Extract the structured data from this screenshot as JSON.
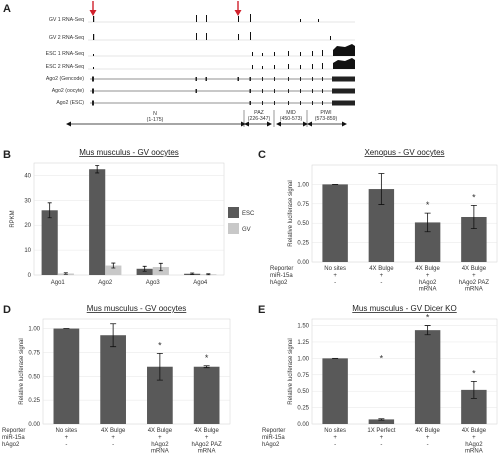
{
  "panels": {
    "A": "A",
    "B": "B",
    "C": "C",
    "D": "D",
    "E": "E"
  },
  "panel_a": {
    "tracks": [
      "GV 1 RNA-Seq",
      "GV 2 RNA-Seq",
      "ESC 1 RNA-Seq",
      "ESC 2 RNA-Seq",
      "Ago2 (Gencode)",
      "Ago2 (oocyte)",
      "Ago2 (ESC)"
    ],
    "domains": [
      {
        "name": "N",
        "range": "(1-175)"
      },
      {
        "name": "PAZ",
        "range": "(226-347)"
      },
      {
        "name": "MID",
        "range": "(450-573)"
      },
      {
        "name": "PIWI",
        "range": "(573-859)"
      }
    ],
    "marker_color": "#d0202b"
  },
  "chart_data": [
    {
      "id": "B",
      "type": "bar",
      "title": "Mus musculus - GV oocytes",
      "ylabel": "RPKM",
      "categories": [
        "Ago1",
        "Ago2",
        "Ago3",
        "Ago4"
      ],
      "series": [
        {
          "name": "ESC",
          "color": "#595959",
          "values": [
            26,
            42.5,
            2.5,
            0.5
          ],
          "err": [
            3,
            1.5,
            1,
            0.3
          ]
        },
        {
          "name": "GV",
          "color": "#c8c8c8",
          "values": [
            0.6,
            3.8,
            3.2,
            0.3
          ],
          "err": [
            0.3,
            1,
            1.5,
            0.2
          ]
        }
      ],
      "ylim": [
        0,
        45
      ],
      "yticks": [
        0,
        10,
        20,
        30,
        40
      ],
      "legend": "right"
    },
    {
      "id": "C",
      "type": "bar",
      "title": "Xenopus - GV oocytes",
      "ylabel": "Relative luciferase signal",
      "categories": [
        "No sites",
        "4X Bulge",
        "4X Bulge",
        "4X Bulge"
      ],
      "values": [
        1.0,
        0.94,
        0.51,
        0.58
      ],
      "err": [
        0.0,
        0.2,
        0.12,
        0.15
      ],
      "stars": [
        false,
        false,
        true,
        true
      ],
      "ylim": [
        0,
        1.25
      ],
      "yticks": [
        "0.00",
        "0.25",
        "0.50",
        "0.75",
        "1.00"
      ],
      "rows": [
        {
          "label": "Reporter",
          "cells": [
            "No sites",
            "4X Bulge",
            "4X Bulge",
            "4X Bulge"
          ]
        },
        {
          "label": "miR-15a",
          "cells": [
            "+",
            "+",
            "+",
            "+"
          ]
        },
        {
          "label": "hAgo2",
          "cells": [
            "-",
            "-",
            "hAgo2\nmRNA",
            "hAgo2 PAZ\nmRNA"
          ]
        }
      ]
    },
    {
      "id": "D",
      "type": "bar",
      "title": "Mus musculus - GV oocytes",
      "ylabel": "Relative luciferase signal",
      "categories": [
        "No sites",
        "4X Bulge",
        "4X Bulge",
        "4X Bulge"
      ],
      "values": [
        1.0,
        0.93,
        0.6,
        0.6
      ],
      "err": [
        0.0,
        0.12,
        0.14,
        0.01
      ],
      "stars": [
        false,
        false,
        true,
        true
      ],
      "ylim": [
        0,
        1.1
      ],
      "yticks": [
        "0.00",
        "0.25",
        "0.50",
        "0.75",
        "1.00"
      ],
      "rows": [
        {
          "label": "Reporter",
          "cells": [
            "No sites",
            "4X Bulge",
            "4X Bulge",
            "4X Bulge"
          ]
        },
        {
          "label": "miR-15a",
          "cells": [
            "+",
            "+",
            "+",
            "+"
          ]
        },
        {
          "label": "hAgo2",
          "cells": [
            "-",
            "-",
            "hAgo2\nmRNA",
            "hAgo2 PAZ\nmRNA"
          ]
        }
      ]
    },
    {
      "id": "E",
      "type": "bar",
      "title": "Mus musculus - GV Dicer KO",
      "ylabel": "Relative luciferase signal",
      "categories": [
        "No sites",
        "1X Perfect",
        "4X Bulge",
        "4X Bulge"
      ],
      "values": [
        1.0,
        0.07,
        1.43,
        0.52
      ],
      "err": [
        0.0,
        0.01,
        0.07,
        0.13
      ],
      "stars": [
        false,
        true,
        true,
        true
      ],
      "ylim": [
        0,
        1.6
      ],
      "yticks": [
        "0.00",
        "0.25",
        "0.50",
        "0.75",
        "1.00",
        "1.25",
        "1.50"
      ],
      "rows": [
        {
          "label": "Reporter",
          "cells": [
            "No sites",
            "1X Perfect",
            "4X Bulge",
            "4X Bulge"
          ]
        },
        {
          "label": "miR-15a",
          "cells": [
            "+",
            "+",
            "+",
            "+"
          ]
        },
        {
          "label": "hAgo2",
          "cells": [
            "-",
            "-",
            "-",
            "hAgo2\nmRNA"
          ]
        }
      ]
    }
  ]
}
